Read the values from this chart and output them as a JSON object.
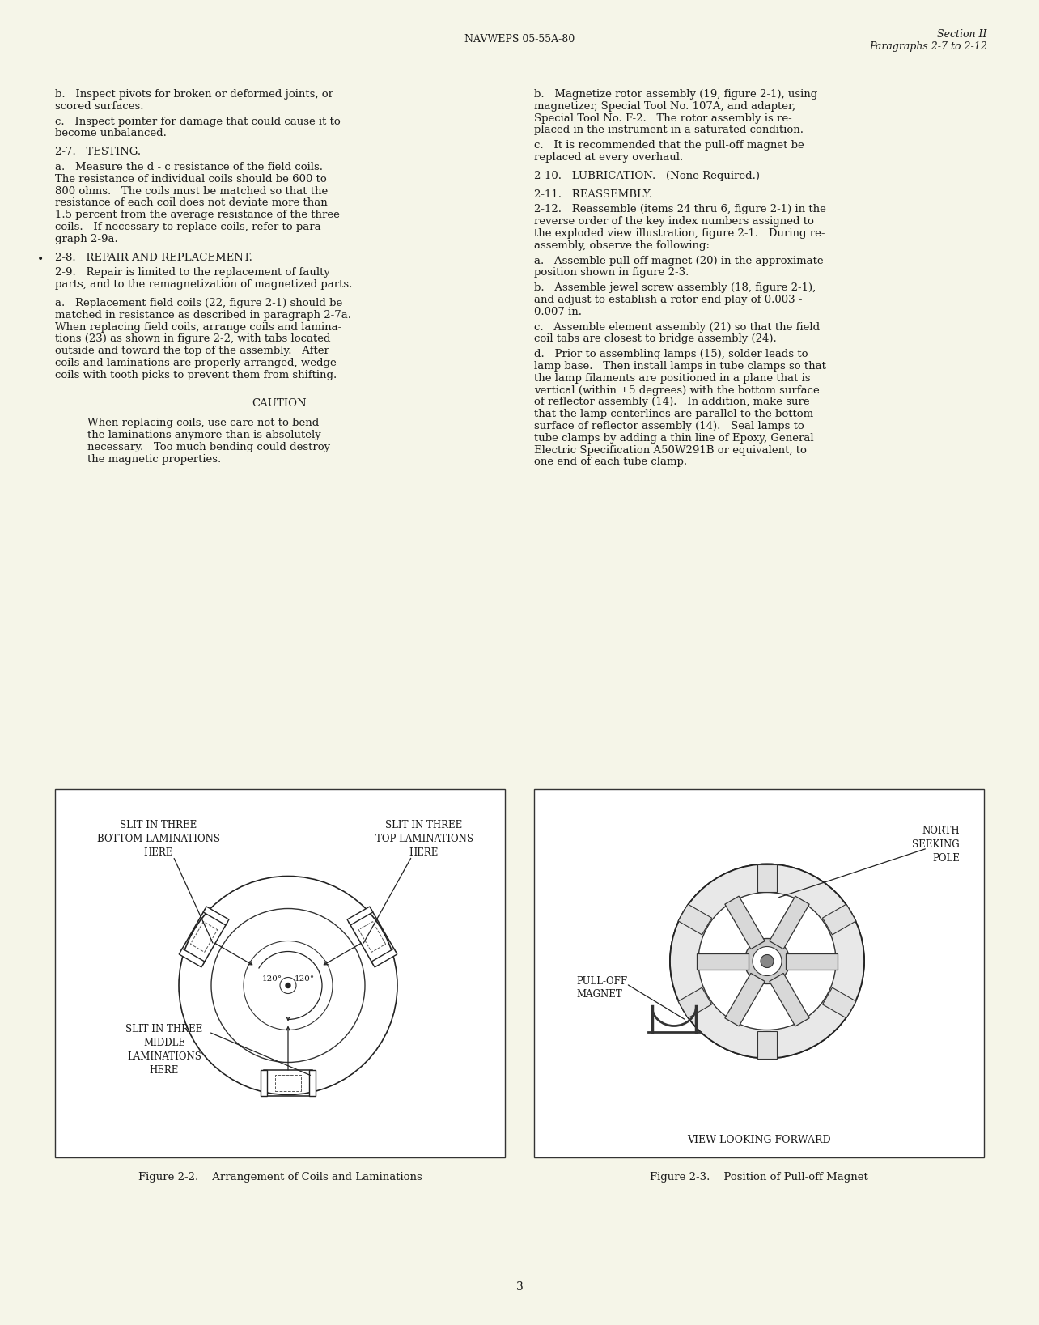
{
  "page_bg": "#F5F5E8",
  "text_color": "#1a1a1a",
  "header_center": "NAVWEPS 05-55A-80",
  "header_right_line1": "Section II",
  "header_right_line2": "Paragraphs 2-7 to 2-12",
  "page_number": "3",
  "fig2_caption": "Figure 2-2.    Arrangement of Coils and Laminations",
  "fig3_caption": "Figure 2-3.    Position of Pull-off Magnet",
  "fig3_subfig_label": "VIEW LOOKING FORWARD",
  "left_col_paras": [
    {
      "text": "b.   Inspect pivots for broken or deformed joints, or\nscored surfaces.",
      "indent": 0,
      "bullet": false,
      "extra_space_before": 0
    },
    {
      "text": "c.   Inspect pointer for damage that could cause it to\nbecome unbalanced.",
      "indent": 0,
      "bullet": false,
      "extra_space_before": 4
    },
    {
      "text": "2-7.   TESTING.",
      "indent": 0,
      "bullet": false,
      "extra_space_before": 8
    },
    {
      "text": "a.   Measure the d - c resistance of the field coils.\nThe resistance of individual coils should be 600 to\n800 ohms.   The coils must be matched so that the\nresistance of each coil does not deviate more than\n1.5 percent from the average resistance of the three\ncoils.   If necessary to replace coils, refer to para-\ngraph 2-9a.",
      "indent": 0,
      "bullet": false,
      "extra_space_before": 4
    },
    {
      "text": "2-8.   REPAIR AND REPLACEMENT.",
      "indent": 0,
      "bullet": true,
      "extra_space_before": 8
    },
    {
      "text": "2-9.   Repair is limited to the replacement of faulty\nparts, and to the remagnetization of magnetized parts.",
      "indent": 0,
      "bullet": false,
      "extra_space_before": 4
    },
    {
      "text": "a.   Replacement field coils (22, figure 2-1) should be\nmatched in resistance as described in paragraph 2-7a.\nWhen replacing field coils, arrange coils and lamina-\ntions (23) as shown in figure 2-2, with tabs located\noutside and toward the top of the assembly.   After\ncoils and laminations are properly arranged, wedge\ncoils with tooth picks to prevent them from shifting.",
      "indent": 0,
      "bullet": false,
      "extra_space_before": 8
    },
    {
      "text": "CAUTION",
      "indent": 0,
      "bullet": false,
      "is_caution_title": true,
      "extra_space_before": 20
    },
    {
      "text": "When replacing coils, use care not to bend\nthe laminations anymore than is absolutely\nnecessary.   Too much bending could destroy\nthe magnetic properties.",
      "indent": 40,
      "bullet": false,
      "extra_space_before": 10
    }
  ],
  "right_col_paras": [
    {
      "text": "b.   Magnetize rotor assembly (19, figure 2-1), using\nmagnetizer, Special Tool No. 107A, and adapter,\nSpecial Tool No. F-2.   The rotor assembly is re-\nplaced in the instrument in a saturated condition.",
      "extra_space_before": 0
    },
    {
      "text": "c.   It is recommended that the pull-off magnet be\nreplaced at every overhaul.",
      "extra_space_before": 4
    },
    {
      "text": "2-10.   LUBRICATION.   (None Required.)",
      "extra_space_before": 8
    },
    {
      "text": "2-11.   REASSEMBLY.",
      "extra_space_before": 8
    },
    {
      "text": "2-12.   Reassemble (items 24 thru 6, figure 2-1) in the\nreverse order of the key index numbers assigned to\nthe exploded view illustration, figure 2-1.   During re-\nassembly, observe the following:",
      "extra_space_before": 4
    },
    {
      "text": "a.   Assemble pull-off magnet (20) in the approximate\nposition shown in figure 2-3.",
      "extra_space_before": 4
    },
    {
      "text": "b.   Assemble jewel screw assembly (18, figure 2-1),\nand adjust to establish a rotor end play of 0.003 -\n0.007 in.",
      "extra_space_before": 4
    },
    {
      "text": "c.   Assemble element assembly (21) so that the field\ncoil tabs are closest to bridge assembly (24).",
      "extra_space_before": 4
    },
    {
      "text": "d.   Prior to assembling lamps (15), solder leads to\nlamp base.   Then install lamps in tube clamps so that\nthe lamp filaments are positioned in a plane that is\nvertical (within ±5 degrees) with the bottom surface\nof reflector assembly (14).   In addition, make sure\nthat the lamp centerlines are parallel to the bottom\nsurface of reflector assembly (14).   Seal lamps to\ntube clamps by adding a thin line of Epoxy, General\nElectric Specification A50W291B or equivalent, to\none end of each tube clamp.",
      "extra_space_before": 4
    }
  ]
}
